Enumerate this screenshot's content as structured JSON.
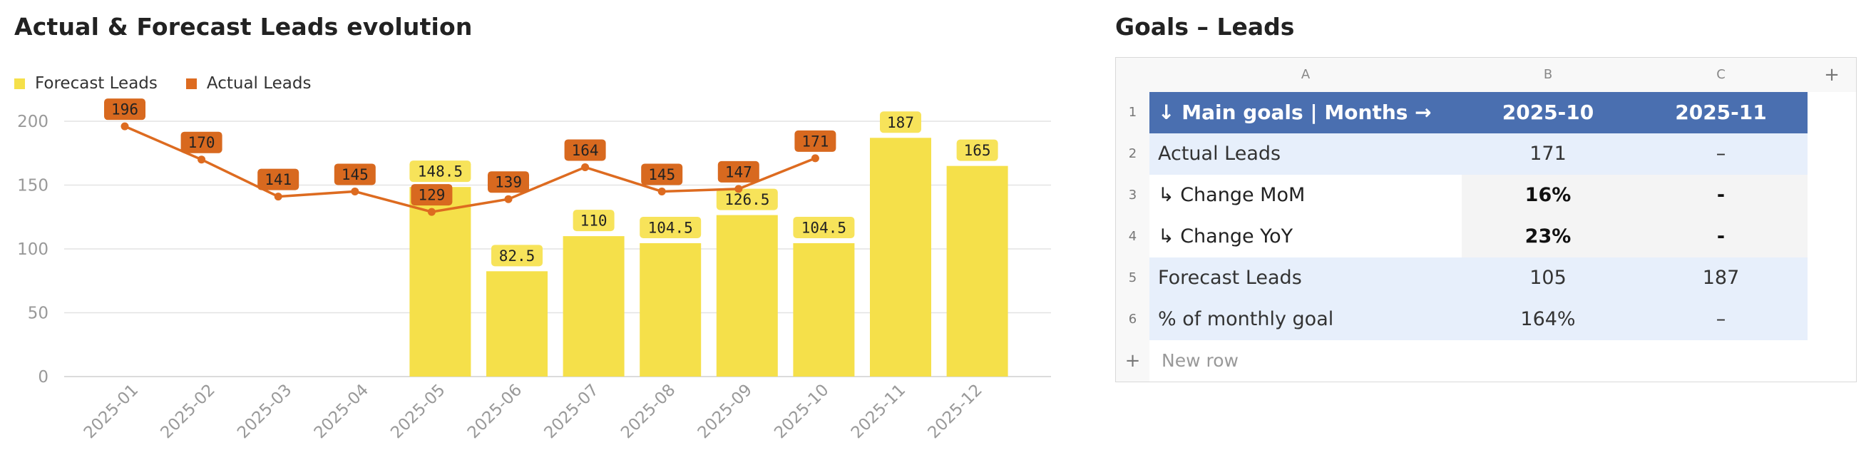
{
  "chart_data": {
    "type": "bar",
    "title": "Actual & Forecast Leads evolution",
    "categories": [
      "2025-01",
      "2025-02",
      "2025-03",
      "2025-04",
      "2025-05",
      "2025-06",
      "2025-07",
      "2025-08",
      "2025-09",
      "2025-10",
      "2025-11",
      "2025-12"
    ],
    "series": [
      {
        "name": "Forecast Leads",
        "kind": "bar",
        "color": "#f5e04a",
        "label_color": "#f7e35a",
        "values": [
          null,
          null,
          null,
          null,
          148.5,
          82.5,
          110,
          104.5,
          126.5,
          104.5,
          187,
          165
        ]
      },
      {
        "name": "Actual Leads",
        "kind": "line",
        "color": "#dd6b20",
        "label_color": "#d8691f",
        "values": [
          196,
          170,
          141,
          145,
          129,
          139,
          164,
          145,
          147,
          171,
          null,
          null
        ]
      }
    ],
    "y_ticks": [
      0,
      50,
      100,
      150,
      200
    ],
    "ylim": [
      0,
      200
    ],
    "grid": true,
    "legend_position": "top-left",
    "xlabel": "",
    "ylabel": ""
  },
  "goals": {
    "title": "Goals – Leads",
    "column_letters": [
      "A",
      "B",
      "C"
    ],
    "add_column": "+",
    "rows": [
      {
        "num": "1",
        "a": "↓ Main goals | Months →",
        "b": "2025-10",
        "c": "2025-11"
      },
      {
        "num": "2",
        "a": "Actual Leads",
        "b": "171",
        "c": "–"
      },
      {
        "num": "3",
        "a": "↳ Change MoM",
        "b": "16%",
        "c": "-"
      },
      {
        "num": "4",
        "a": "↳ Change YoY",
        "b": "23%",
        "c": "-"
      },
      {
        "num": "5",
        "a": "Forecast Leads",
        "b": "105",
        "c": "187"
      },
      {
        "num": "6",
        "a": "% of monthly goal",
        "b": "164%",
        "c": "–"
      }
    ],
    "new_row_icon": "+",
    "new_row_label": "New row"
  }
}
